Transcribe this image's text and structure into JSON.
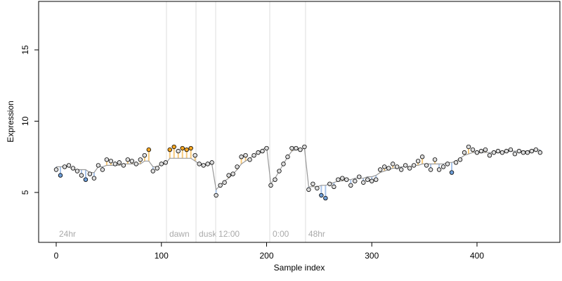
{
  "chart_data": {
    "type": "scatter",
    "xlabel": "Sample index",
    "ylabel": "Expression",
    "xlim": [
      -16.7,
      478.8
    ],
    "ylim": [
      1.5,
      18.4
    ],
    "xticks": [
      0,
      100,
      200,
      300,
      400
    ],
    "yticks": [
      5,
      10,
      15
    ],
    "colors": {
      "above": "#f5a623",
      "below": "#6f9fd8",
      "neutral": "#dddddd",
      "fitted": "#999999",
      "above_segment": "#f7c97a",
      "below_segment": "#a9c4ea"
    },
    "events": [
      {
        "label": "24hr",
        "x": 0,
        "line": false
      },
      {
        "label": "dawn",
        "x": 104.8,
        "line": true
      },
      {
        "label": "dusk",
        "x": 132.9,
        "line": true
      },
      {
        "label": "12:00",
        "x": 151.6,
        "line": true
      },
      {
        "label": "0:00",
        "x": 203,
        "line": true
      },
      {
        "label": "48hr",
        "x": 237,
        "line": true
      }
    ],
    "x": [
      0,
      4,
      8,
      12,
      16,
      20,
      24,
      28,
      32,
      36,
      40,
      44,
      48,
      52,
      56,
      60,
      64,
      68,
      72,
      76,
      80,
      84,
      88,
      92,
      96,
      100,
      104,
      108,
      112,
      116,
      120,
      124,
      128,
      132,
      136,
      140,
      144,
      148,
      152,
      156,
      160,
      164,
      168,
      172,
      176,
      180,
      184,
      188,
      192,
      196,
      200,
      204,
      208,
      212,
      216,
      220,
      224,
      228,
      232,
      236,
      240,
      244,
      248,
      252,
      256,
      260,
      264,
      268,
      272,
      276,
      280,
      284,
      288,
      292,
      296,
      300,
      304,
      308,
      312,
      316,
      320,
      324,
      328,
      332,
      336,
      340,
      344,
      348,
      352,
      356,
      360,
      364,
      368,
      372,
      376,
      380,
      384,
      388,
      392,
      396,
      400,
      404,
      408,
      412,
      416,
      420,
      424,
      428,
      432,
      436,
      440,
      444,
      448,
      452,
      456,
      460
    ],
    "values": [
      6.6,
      6.2,
      6.8,
      6.9,
      6.7,
      6.5,
      6.2,
      5.9,
      6.3,
      6.0,
      6.9,
      6.6,
      7.3,
      7.2,
      7.0,
      7.1,
      6.9,
      7.3,
      7.2,
      7.0,
      7.3,
      7.6,
      8.0,
      6.5,
      6.7,
      7.0,
      7.1,
      8.0,
      8.2,
      7.9,
      8.1,
      8.0,
      8.1,
      7.6,
      7.0,
      6.9,
      7.0,
      7.1,
      4.8,
      5.5,
      5.7,
      6.2,
      6.3,
      6.8,
      7.5,
      7.6,
      7.3,
      7.6,
      7.8,
      7.9,
      8.1,
      5.5,
      5.9,
      6.5,
      7.0,
      7.5,
      8.1,
      8.1,
      8.0,
      8.2,
      5.2,
      5.6,
      5.3,
      4.8,
      4.6,
      5.6,
      5.4,
      5.9,
      6.0,
      5.9,
      5.5,
      5.8,
      6.1,
      5.7,
      5.9,
      5.8,
      5.9,
      6.6,
      6.8,
      6.7,
      7.0,
      6.8,
      6.6,
      6.9,
      6.7,
      6.9,
      7.2,
      7.5,
      6.9,
      6.6,
      7.3,
      6.6,
      6.8,
      7.0,
      6.4,
      7.1,
      7.3,
      7.8,
      8.2,
      8.0,
      7.8,
      7.9,
      8.0,
      7.6,
      7.8,
      7.9,
      7.8,
      7.9,
      8.0,
      7.7,
      7.9,
      7.8,
      7.8,
      7.9,
      8.0,
      7.8
    ],
    "fitted": [
      6.8,
      6.8,
      6.8,
      6.8,
      6.6,
      6.6,
      6.6,
      6.6,
      6.4,
      6.4,
      6.8,
      6.8,
      6.9,
      6.9,
      6.9,
      6.9,
      7.0,
      7.0,
      7.0,
      7.0,
      7.0,
      7.2,
      7.2,
      6.8,
      6.8,
      7.0,
      7.0,
      7.4,
      7.4,
      7.4,
      7.4,
      7.4,
      7.4,
      7.2,
      7.0,
      7.0,
      7.0,
      7.0,
      5.2,
      5.5,
      5.8,
      6.0,
      6.3,
      6.6,
      7.0,
      7.2,
      7.4,
      7.6,
      7.8,
      8.0,
      8.2,
      5.6,
      6.0,
      6.5,
      7.0,
      7.5,
      7.9,
      8.0,
      8.0,
      8.1,
      5.4,
      5.4,
      5.4,
      5.5,
      5.5,
      5.6,
      5.7,
      5.8,
      5.8,
      5.9,
      5.9,
      6.0,
      6.0,
      6.0,
      6.1,
      6.1,
      6.2,
      6.4,
      6.5,
      6.6,
      6.7,
      6.7,
      6.8,
      6.8,
      6.8,
      6.9,
      6.9,
      7.0,
      7.0,
      7.0,
      7.0,
      7.0,
      7.0,
      7.1,
      7.1,
      7.2,
      7.4,
      7.6,
      7.7,
      7.8,
      7.8,
      7.8,
      7.8,
      7.8,
      7.8,
      7.8,
      7.8,
      7.9,
      7.9,
      7.9,
      7.9,
      7.9,
      7.9,
      8.0,
      8.0,
      8.0
    ]
  }
}
